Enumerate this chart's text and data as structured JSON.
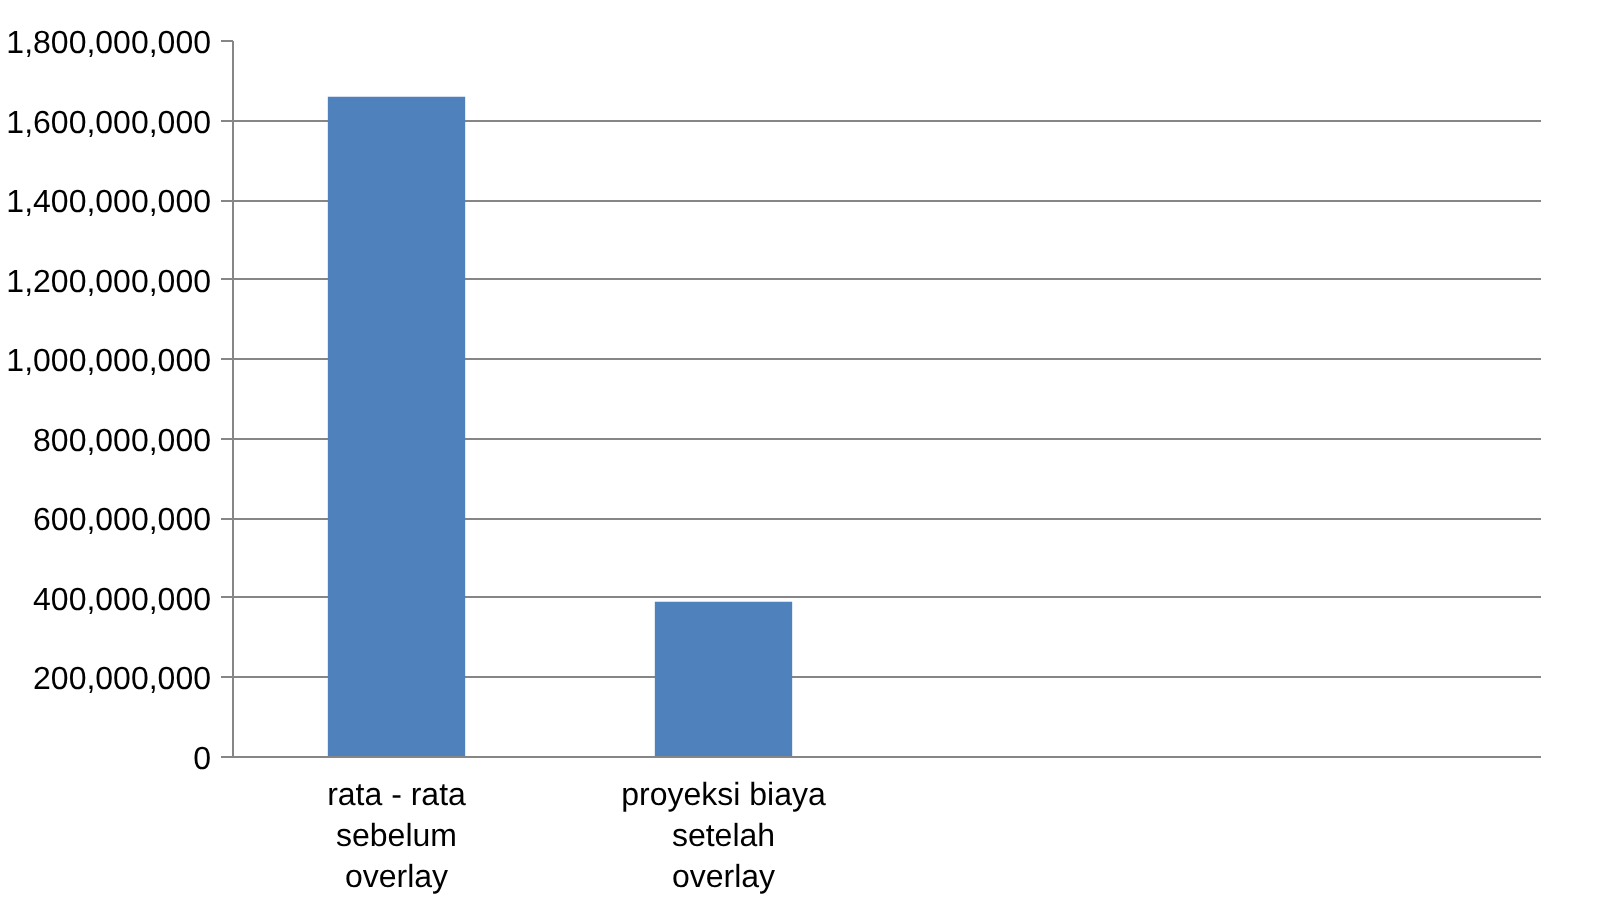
{
  "chart_data": {
    "type": "bar",
    "categories": [
      "rata - rata sebelum overlay",
      "proyeksi biaya setelah overlay",
      null,
      null
    ],
    "values": [
      1660000000,
      390000000,
      null,
      null
    ],
    "color": "#4f81bd",
    "ylim": [
      0,
      1800000000
    ],
    "yticks": [
      0,
      {
        "value": 200000000,
        "label": "200,000,000"
      },
      {
        "value": 400000000,
        "label": "400,000,000"
      },
      {
        "value": 600000000,
        "label": "600,000,000"
      },
      {
        "value": 800000000,
        "label": "800,000,000"
      },
      {
        "value": 1000000000,
        "label": "1,000,000,000"
      },
      {
        "value": 1200000000,
        "label": "1,200,000,000"
      },
      {
        "value": 1400000000,
        "label": "1,400,000,000"
      },
      {
        "value": 1600000000,
        "label": "1,600,000,000"
      },
      {
        "value": 1800000000,
        "label": "1,800,000,000"
      }
    ],
    "grid": "y"
  }
}
